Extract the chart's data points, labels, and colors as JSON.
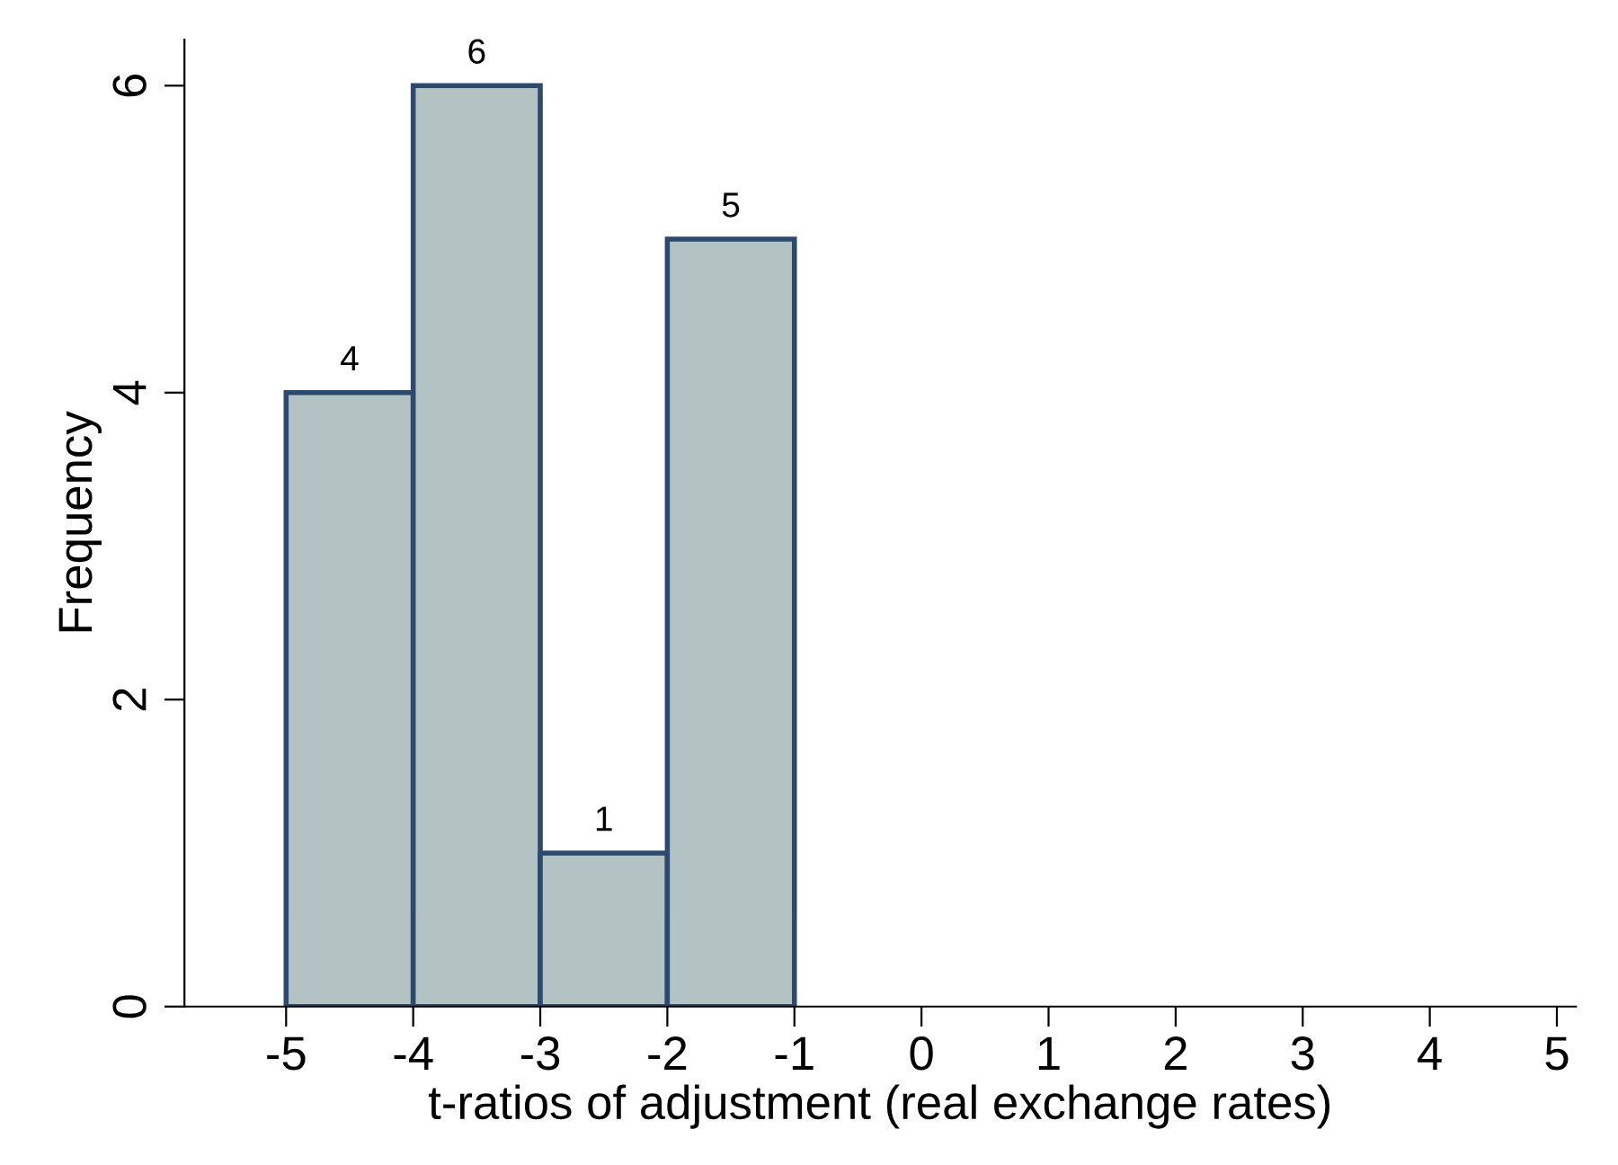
{
  "chart_data": {
    "type": "histogram",
    "xlabel": "t-ratios of adjustment (real exchange rates)",
    "ylabel": "Frequency",
    "bins": [
      -5,
      -4,
      -3,
      -2,
      -1
    ],
    "values": [
      4,
      6,
      1,
      5
    ],
    "color": "#b3c3c3",
    "xlim": [
      -5.8,
      5.15
    ],
    "xticks": [
      -5,
      -4,
      -3,
      -2,
      -1,
      0,
      1,
      2,
      3,
      4,
      5
    ],
    "ylim": [
      0,
      6.3
    ],
    "yticks": [
      0,
      2,
      4,
      6
    ],
    "grid": false,
    "data_labels": true
  }
}
